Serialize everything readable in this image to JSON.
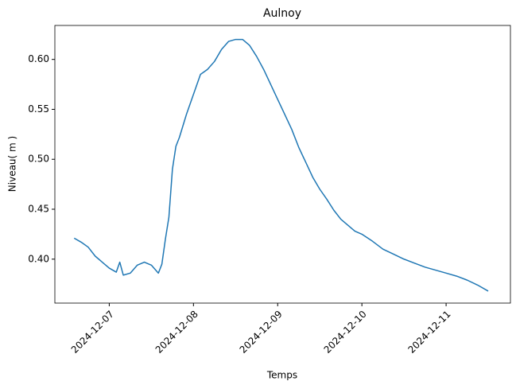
{
  "chart_data": {
    "type": "line",
    "title": "Aulnoy",
    "x_label": "Temps",
    "y_label": "Niveau( m )",
    "x": [
      "2024-12-06T14:00",
      "2024-12-06T16:00",
      "2024-12-06T18:00",
      "2024-12-06T20:00",
      "2024-12-06T22:00",
      "2024-12-07T00:00",
      "2024-12-07T02:00",
      "2024-12-07T03:00",
      "2024-12-07T04:00",
      "2024-12-07T06:00",
      "2024-12-07T08:00",
      "2024-12-07T10:00",
      "2024-12-07T12:00",
      "2024-12-07T14:00",
      "2024-12-07T15:00",
      "2024-12-07T16:00",
      "2024-12-07T17:00",
      "2024-12-07T18:00",
      "2024-12-07T19:00",
      "2024-12-07T20:00",
      "2024-12-07T22:00",
      "2024-12-08T00:00",
      "2024-12-08T02:00",
      "2024-12-08T04:00",
      "2024-12-08T06:00",
      "2024-12-08T08:00",
      "2024-12-08T10:00",
      "2024-12-08T12:00",
      "2024-12-08T14:00",
      "2024-12-08T16:00",
      "2024-12-08T18:00",
      "2024-12-08T20:00",
      "2024-12-08T22:00",
      "2024-12-09T00:00",
      "2024-12-09T02:00",
      "2024-12-09T04:00",
      "2024-12-09T06:00",
      "2024-12-09T08:00",
      "2024-12-09T10:00",
      "2024-12-09T12:00",
      "2024-12-09T14:00",
      "2024-12-09T16:00",
      "2024-12-09T18:00",
      "2024-12-09T20:00",
      "2024-12-09T22:00",
      "2024-12-10T00:00",
      "2024-12-10T03:00",
      "2024-12-10T06:00",
      "2024-12-10T09:00",
      "2024-12-10T12:00",
      "2024-12-10T15:00",
      "2024-12-10T18:00",
      "2024-12-10T21:00",
      "2024-12-11T00:00",
      "2024-12-11T03:00",
      "2024-12-11T06:00",
      "2024-12-11T09:00",
      "2024-12-11T12:00"
    ],
    "series": [
      {
        "name": "Niveau",
        "color": "#1f77b4",
        "values": [
          0.421,
          0.417,
          0.412,
          0.403,
          0.397,
          0.391,
          0.387,
          0.397,
          0.384,
          0.386,
          0.394,
          0.397,
          0.394,
          0.386,
          0.395,
          0.42,
          0.442,
          0.49,
          0.513,
          0.522,
          0.545,
          0.565,
          0.585,
          0.59,
          0.598,
          0.61,
          0.618,
          0.62,
          0.62,
          0.614,
          0.603,
          0.59,
          0.575,
          0.56,
          0.545,
          0.53,
          0.512,
          0.497,
          0.482,
          0.47,
          0.46,
          0.449,
          0.44,
          0.434,
          0.428,
          0.425,
          0.418,
          0.41,
          0.405,
          0.4,
          0.396,
          0.392,
          0.389,
          0.386,
          0.383,
          0.379,
          0.374,
          0.368
        ]
      }
    ],
    "xlim": [
      "2024-12-06T08:30",
      "2024-12-11T18:20"
    ],
    "xticks": [
      "2024-12-07",
      "2024-12-08",
      "2024-12-09",
      "2024-12-10",
      "2024-12-11"
    ],
    "ylim": [
      0.356,
      0.634
    ],
    "yticks": [
      {
        "value": 0.4,
        "label": "0.40"
      },
      {
        "value": 0.45,
        "label": "0.45"
      },
      {
        "value": 0.5,
        "label": "0.50"
      },
      {
        "value": 0.55,
        "label": "0.55"
      },
      {
        "value": 0.6,
        "label": "0.60"
      }
    ]
  }
}
